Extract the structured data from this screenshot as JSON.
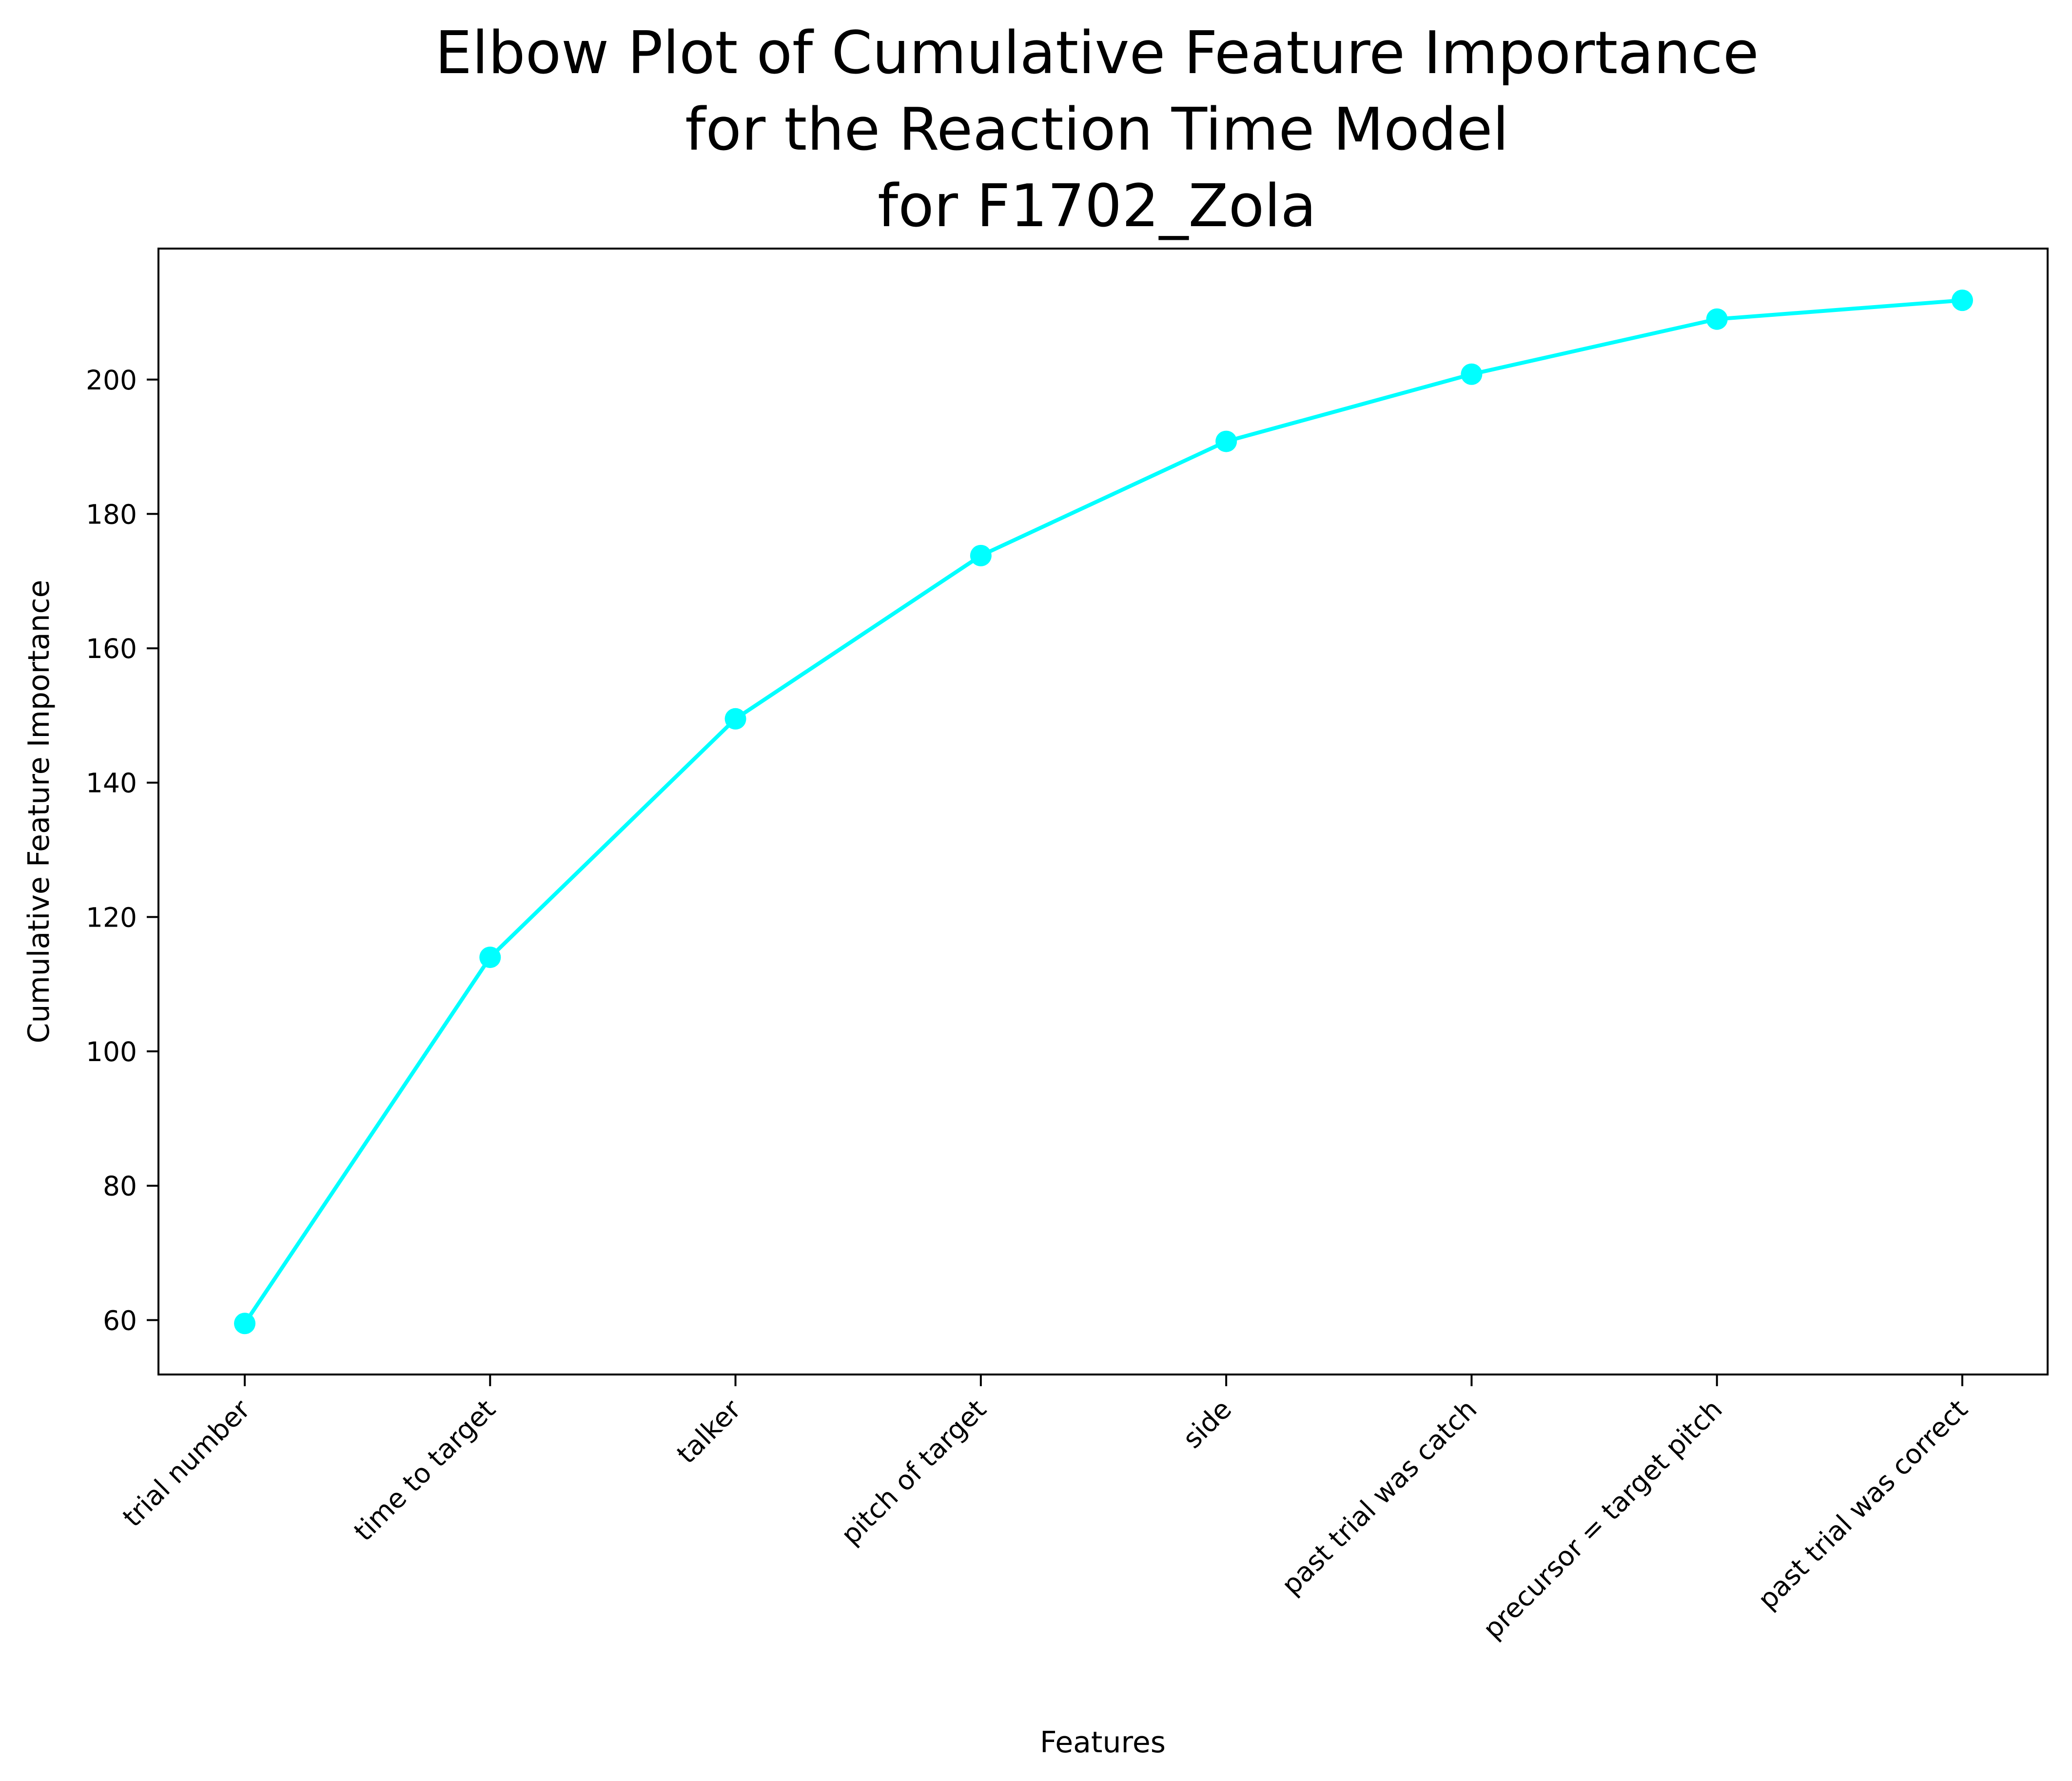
{
  "chart_data": {
    "type": "line",
    "title": [
      "Elbow Plot of Cumulative Feature Importance",
      "for the Reaction Time Model",
      "for F1702_Zola"
    ],
    "xlabel": "Features",
    "ylabel": "Cumulative Feature Importance",
    "categories": [
      "trial number",
      "time to target",
      "talker",
      "pitch of target",
      "side",
      "past trial was catch",
      "precursor = target pitch",
      "past trial was correct"
    ],
    "series": [
      {
        "values": [
          59.5,
          114.0,
          149.5,
          173.8,
          190.8,
          200.8,
          209.0,
          211.8
        ],
        "color": "#00ffff",
        "marker": "circle"
      }
    ],
    "ylim": [
      51.9,
      219.5
    ],
    "yticks": [
      60,
      80,
      100,
      120,
      140,
      160,
      180,
      200
    ],
    "ytick_labels": [
      "60",
      "80",
      "100",
      "120",
      "140",
      "160",
      "180",
      "200"
    ],
    "grid": false,
    "legend": "none"
  }
}
